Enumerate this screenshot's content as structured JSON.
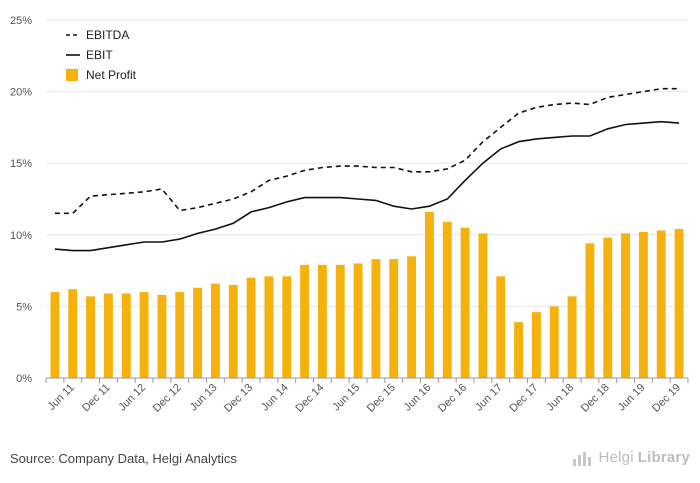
{
  "chart_data": {
    "type": "bar",
    "categories": [
      "Jun 11",
      "Dec 11",
      "Jun 12",
      "Dec 12",
      "Jun 13",
      "Dec 13",
      "Jun 14",
      "Dec 14",
      "Jun 15",
      "Dec 15",
      "Jun 16",
      "Dec 16",
      "Jun 17",
      "Dec 17",
      "Jun 18",
      "Dec 18",
      "Jun 19",
      "Dec 19"
    ],
    "x": [
      "Mar 11",
      "Jun 11",
      "Sep 11",
      "Dec 11",
      "Mar 12",
      "Jun 12",
      "Sep 12",
      "Dec 12",
      "Mar 13",
      "Jun 13",
      "Sep 13",
      "Dec 13",
      "Mar 14",
      "Jun 14",
      "Sep 14",
      "Dec 14",
      "Mar 15",
      "Jun 15",
      "Sep 15",
      "Dec 15",
      "Mar 16",
      "Jun 16",
      "Sep 16",
      "Dec 16",
      "Mar 17",
      "Jun 17",
      "Sep 17",
      "Dec 17",
      "Mar 18",
      "Jun 18",
      "Sep 18",
      "Dec 18",
      "Mar 19",
      "Jun 19",
      "Sep 19",
      "Dec 19"
    ],
    "series": [
      {
        "name": "EBITDA",
        "kind": "line",
        "style": "dashed",
        "color": "#111111",
        "values": [
          11.5,
          11.5,
          12.7,
          12.8,
          12.9,
          13.0,
          13.2,
          11.7,
          11.9,
          12.2,
          12.5,
          13.0,
          13.8,
          14.1,
          14.5,
          14.7,
          14.8,
          14.8,
          14.7,
          14.7,
          14.4,
          14.4,
          14.6,
          15.2,
          16.5,
          17.5,
          18.5,
          18.9,
          19.1,
          19.2,
          19.1,
          19.6,
          19.8,
          20.0,
          20.2,
          20.2
        ]
      },
      {
        "name": "EBIT",
        "kind": "line",
        "style": "solid",
        "color": "#111111",
        "values": [
          9.0,
          8.9,
          8.9,
          9.1,
          9.3,
          9.5,
          9.5,
          9.7,
          10.1,
          10.4,
          10.8,
          11.6,
          11.9,
          12.3,
          12.6,
          12.6,
          12.6,
          12.5,
          12.4,
          12.0,
          11.8,
          12.0,
          12.5,
          13.8,
          15.0,
          16.0,
          16.5,
          16.7,
          16.8,
          16.9,
          16.9,
          17.4,
          17.7,
          17.8,
          17.9,
          17.8
        ]
      },
      {
        "name": "Net Profit",
        "kind": "bar",
        "color": "#f5b20c",
        "values": [
          6.0,
          6.2,
          5.7,
          5.9,
          5.9,
          6.0,
          5.8,
          6.0,
          6.3,
          6.6,
          6.5,
          7.0,
          7.1,
          7.1,
          7.9,
          7.9,
          7.9,
          8.0,
          8.3,
          8.3,
          8.5,
          11.6,
          10.9,
          10.5,
          10.1,
          7.1,
          3.9,
          4.6,
          5.0,
          5.7,
          9.4,
          9.8,
          10.1,
          10.2,
          10.3,
          10.4
        ]
      }
    ],
    "ylim": [
      0,
      25
    ],
    "yticks": [
      "0%",
      "5%",
      "10%",
      "15%",
      "20%",
      "25%"
    ],
    "grid": "horizontal",
    "legend_position": "top-left",
    "xlabel": "",
    "ylabel": ""
  },
  "footer": {
    "source": "Source: Company Data, Helgi Analytics",
    "brand_light": "Helgi",
    "brand_bold": "Library"
  }
}
